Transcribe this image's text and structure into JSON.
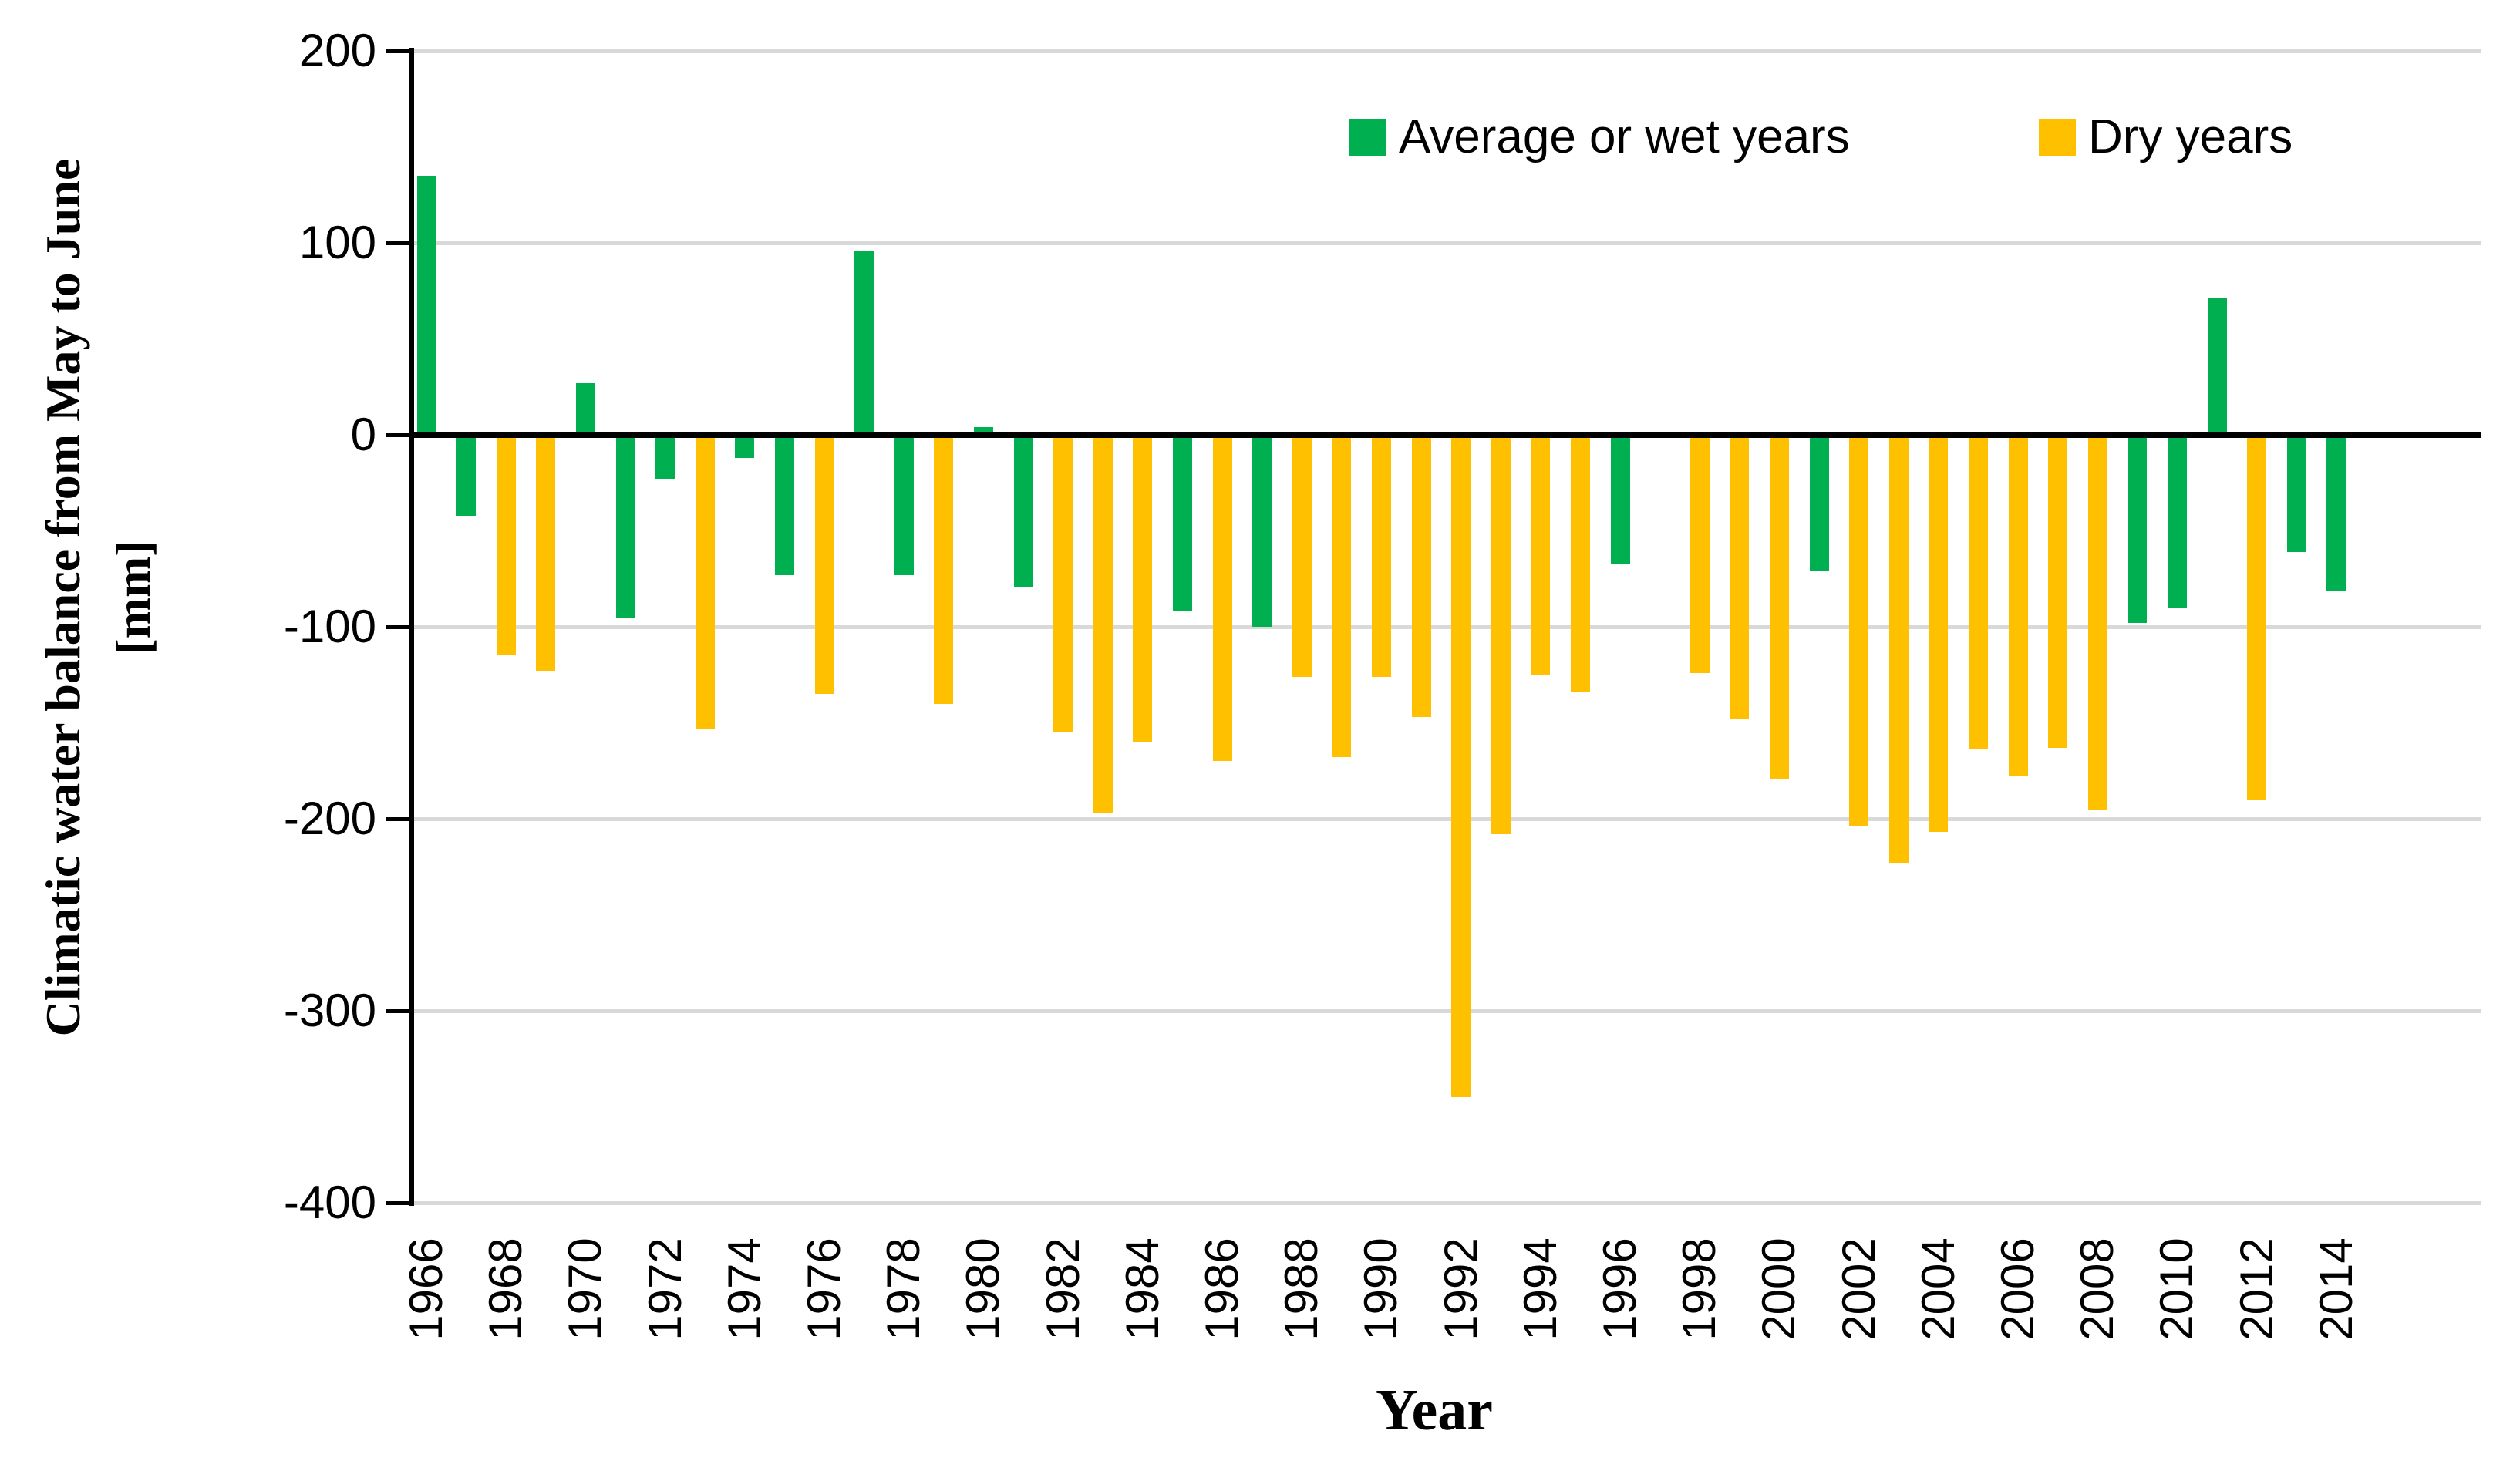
{
  "figure": {
    "y_axis_title_line1": "Climatic water balance from May to June",
    "y_axis_title_line2": "[mm]",
    "x_axis_title": "Year"
  },
  "legend": [
    {
      "label": "Average or wet years",
      "color": "#00B050"
    },
    {
      "label": "Dry years",
      "color": "#FFC000"
    }
  ],
  "chart_data": {
    "type": "bar",
    "title": "",
    "xlabel": "Year",
    "ylabel": "Climatic water balance from May to June [mm]",
    "ylim": [
      -400,
      200
    ],
    "y_ticks": [
      200,
      100,
      0,
      -100,
      -200,
      -300,
      -400
    ],
    "x_tick_labels": [
      "1966",
      "1968",
      "1970",
      "1972",
      "1974",
      "1976",
      "1978",
      "1980",
      "1982",
      "1984",
      "1986",
      "1988",
      "1990",
      "1992",
      "1994",
      "1996",
      "1998",
      "2000",
      "2002",
      "2004",
      "2006",
      "2008",
      "2010",
      "2012",
      "2014"
    ],
    "grid": "horizontal-light-gray",
    "legend_position": "top-right-inside",
    "categories": {
      "wet": "Average or wet years",
      "dry": "Dry years"
    },
    "colors": {
      "wet": "#00B050",
      "dry": "#FFC000",
      "gridline": "#D9D9D9",
      "axis": "#000000"
    },
    "points": [
      {
        "year": 1966,
        "value": 135,
        "category": "wet"
      },
      {
        "year": 1967,
        "value": -42,
        "category": "wet"
      },
      {
        "year": 1968,
        "value": -115,
        "category": "dry"
      },
      {
        "year": 1969,
        "value": -123,
        "category": "dry"
      },
      {
        "year": 1970,
        "value": 27,
        "category": "wet"
      },
      {
        "year": 1971,
        "value": -95,
        "category": "wet"
      },
      {
        "year": 1972,
        "value": -23,
        "category": "wet"
      },
      {
        "year": 1973,
        "value": -153,
        "category": "dry"
      },
      {
        "year": 1974,
        "value": -12,
        "category": "wet"
      },
      {
        "year": 1975,
        "value": -73,
        "category": "wet"
      },
      {
        "year": 1976,
        "value": -135,
        "category": "dry"
      },
      {
        "year": 1977,
        "value": 96,
        "category": "wet"
      },
      {
        "year": 1978,
        "value": -73,
        "category": "wet"
      },
      {
        "year": 1979,
        "value": -140,
        "category": "dry"
      },
      {
        "year": 1980,
        "value": 4,
        "category": "wet"
      },
      {
        "year": 1981,
        "value": -79,
        "category": "wet"
      },
      {
        "year": 1982,
        "value": -155,
        "category": "dry"
      },
      {
        "year": 1983,
        "value": -197,
        "category": "dry"
      },
      {
        "year": 1984,
        "value": -160,
        "category": "dry"
      },
      {
        "year": 1985,
        "value": -92,
        "category": "wet"
      },
      {
        "year": 1986,
        "value": -170,
        "category": "dry"
      },
      {
        "year": 1987,
        "value": -100,
        "category": "wet"
      },
      {
        "year": 1988,
        "value": -126,
        "category": "dry"
      },
      {
        "year": 1989,
        "value": -168,
        "category": "dry"
      },
      {
        "year": 1990,
        "value": -126,
        "category": "dry"
      },
      {
        "year": 1991,
        "value": -147,
        "category": "dry"
      },
      {
        "year": 1992,
        "value": -345,
        "category": "dry"
      },
      {
        "year": 1993,
        "value": -208,
        "category": "dry"
      },
      {
        "year": 1994,
        "value": -125,
        "category": "dry"
      },
      {
        "year": 1995,
        "value": -134,
        "category": "dry"
      },
      {
        "year": 1996,
        "value": -67,
        "category": "wet"
      },
      {
        "year": 1997,
        "value": 0,
        "category": "wet"
      },
      {
        "year": 1998,
        "value": -124,
        "category": "dry"
      },
      {
        "year": 1999,
        "value": -148,
        "category": "dry"
      },
      {
        "year": 2000,
        "value": -179,
        "category": "dry"
      },
      {
        "year": 2001,
        "value": -71,
        "category": "wet"
      },
      {
        "year": 2002,
        "value": -204,
        "category": "dry"
      },
      {
        "year": 2003,
        "value": -223,
        "category": "dry"
      },
      {
        "year": 2004,
        "value": -207,
        "category": "dry"
      },
      {
        "year": 2005,
        "value": -164,
        "category": "dry"
      },
      {
        "year": 2006,
        "value": -178,
        "category": "dry"
      },
      {
        "year": 2007,
        "value": -163,
        "category": "dry"
      },
      {
        "year": 2008,
        "value": -195,
        "category": "dry"
      },
      {
        "year": 2009,
        "value": -98,
        "category": "wet"
      },
      {
        "year": 2010,
        "value": -90,
        "category": "wet"
      },
      {
        "year": 2011,
        "value": 71,
        "category": "wet"
      },
      {
        "year": 2012,
        "value": -190,
        "category": "dry"
      },
      {
        "year": 2013,
        "value": -61,
        "category": "wet"
      },
      {
        "year": 2014,
        "value": -81,
        "category": "wet"
      }
    ]
  }
}
